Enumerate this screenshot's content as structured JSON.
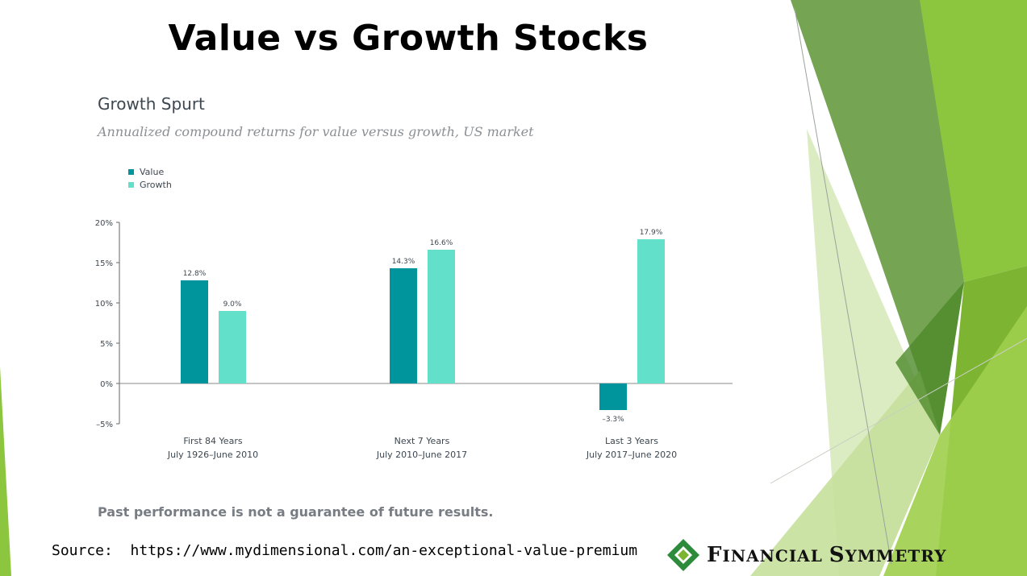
{
  "slide": {
    "title": "Value vs Growth Stocks",
    "disclaimer": "Past performance is not a guarantee of future results.",
    "source_label": "Source:",
    "source_url": "https://www.mydimensional.com/an-exceptional-value-premium",
    "brand": "Financial Symmetry"
  },
  "colors": {
    "value": "#00959c",
    "growth": "#62e0c9",
    "accent_green": "#7db532",
    "logo_green": "#2e8b3c"
  },
  "chart_data": {
    "type": "bar",
    "title": "Growth Spurt",
    "subtitle": "Annualized compound returns for value versus growth, US market",
    "categories": [
      [
        "First 84 Years",
        "July 1926–June 2010"
      ],
      [
        "Next 7 Years",
        "July 2010–June 2017"
      ],
      [
        "Last 3 Years",
        "July 2017–June 2020"
      ]
    ],
    "series": [
      {
        "name": "Value",
        "values": [
          12.8,
          14.3,
          -3.3
        ],
        "labels": [
          "12.8%",
          "14.3%",
          "–3.3%"
        ]
      },
      {
        "name": "Growth",
        "values": [
          9.0,
          16.6,
          17.9
        ],
        "labels": [
          "9.0%",
          "16.6%",
          "17.9%"
        ]
      }
    ],
    "yticks": [
      "20%",
      "15%",
      "10%",
      "5%",
      "0%",
      "–5%"
    ],
    "ylim": [
      -5,
      20
    ],
    "legend": "top-left",
    "grid": false
  }
}
